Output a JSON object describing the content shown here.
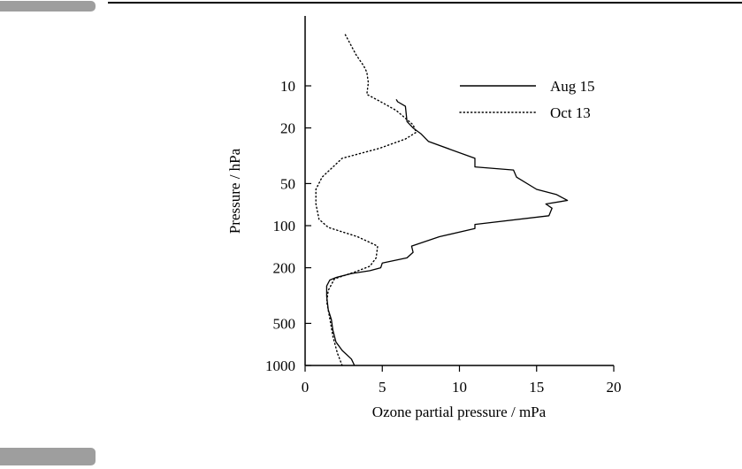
{
  "chart_data": {
    "type": "line",
    "title": "",
    "xlabel": "Ozone partial pressure / mPa",
    "ylabel": "Pressure / hPa",
    "xlim": [
      0,
      20
    ],
    "ylim": [
      1000,
      4
    ],
    "y_scale": "log",
    "x_ticks": [
      "0",
      "5",
      "10",
      "15",
      "20"
    ],
    "y_ticks": [
      "10",
      "20",
      "50",
      "100",
      "200",
      "500",
      "1000"
    ],
    "legend_position": "top-right",
    "series": [
      {
        "name": "Aug 15",
        "style": "solid",
        "points": [
          [
            3.2,
            1000
          ],
          [
            3.0,
            900
          ],
          [
            2.4,
            780
          ],
          [
            2.0,
            680
          ],
          [
            1.8,
            560
          ],
          [
            1.7,
            470
          ],
          [
            1.5,
            400
          ],
          [
            1.4,
            320
          ],
          [
            1.4,
            270
          ],
          [
            1.6,
            245
          ],
          [
            2.0,
            235
          ],
          [
            3.0,
            220
          ],
          [
            4.2,
            210
          ],
          [
            4.9,
            200
          ],
          [
            5.0,
            185
          ],
          [
            6.6,
            170
          ],
          [
            7.0,
            155
          ],
          [
            6.9,
            140
          ],
          [
            8.7,
            120
          ],
          [
            11.0,
            105
          ],
          [
            11.0,
            98
          ],
          [
            15.8,
            85
          ],
          [
            16.0,
            75
          ],
          [
            15.6,
            70
          ],
          [
            17.0,
            66
          ],
          [
            16.3,
            60
          ],
          [
            15.0,
            55
          ],
          [
            13.7,
            45
          ],
          [
            13.5,
            40
          ],
          [
            11.0,
            38
          ],
          [
            11.0,
            33
          ],
          [
            8.0,
            25
          ],
          [
            7.5,
            22
          ],
          [
            7.0,
            20
          ],
          [
            6.6,
            18
          ],
          [
            6.5,
            14
          ],
          [
            6.0,
            13
          ],
          [
            5.9,
            12.5
          ]
        ]
      },
      {
        "name": "Oct 13",
        "style": "dotted",
        "points": [
          [
            2.4,
            1000
          ],
          [
            2.1,
            820
          ],
          [
            1.8,
            620
          ],
          [
            1.6,
            460
          ],
          [
            1.4,
            350
          ],
          [
            1.5,
            290
          ],
          [
            1.9,
            240
          ],
          [
            3.2,
            215
          ],
          [
            4.2,
            195
          ],
          [
            4.6,
            170
          ],
          [
            4.7,
            140
          ],
          [
            3.4,
            120
          ],
          [
            1.5,
            103
          ],
          [
            0.9,
            90
          ],
          [
            0.7,
            70
          ],
          [
            0.7,
            55
          ],
          [
            1.1,
            45
          ],
          [
            2.4,
            33
          ],
          [
            4.8,
            28
          ],
          [
            6.5,
            24
          ],
          [
            7.2,
            21.5
          ],
          [
            7.0,
            19
          ],
          [
            5.9,
            15
          ],
          [
            4.9,
            13
          ],
          [
            4.0,
            11.5
          ],
          [
            4.1,
            9.5
          ],
          [
            4.0,
            8
          ],
          [
            3.8,
            7.2
          ],
          [
            3.3,
            6
          ],
          [
            2.6,
            4.3
          ]
        ]
      }
    ]
  }
}
